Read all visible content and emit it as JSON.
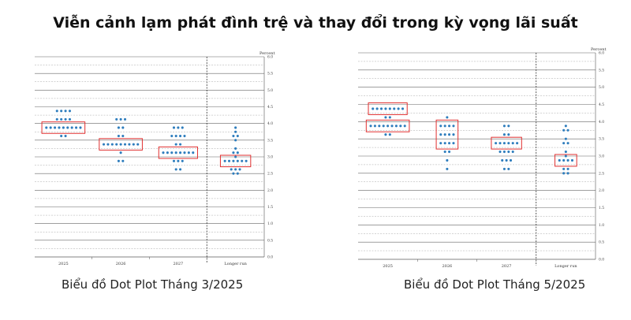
{
  "title": "Viễn cảnh lạm phát đình trệ và thay đổi trong kỳ vọng lãi suất",
  "chart_data": [
    {
      "type": "scatter",
      "caption": "Biểu đồ Dot Plot Tháng 3/2025",
      "unit_label": "Percent",
      "categories": [
        "2025",
        "2026",
        "2027",
        "Longer run"
      ],
      "ylim": [
        0,
        6
      ],
      "yticks": [
        "0.0",
        "0.5",
        "1.0",
        "1.5",
        "2.0",
        "2.5",
        "3.0",
        "3.5",
        "4.0",
        "4.5",
        "5.0",
        "5.5",
        "6.0"
      ],
      "dots": [
        [
          {
            "y": 4.375,
            "n": 4
          },
          {
            "y": 4.125,
            "n": 4
          },
          {
            "y": 3.875,
            "n": 9
          },
          {
            "y": 3.625,
            "n": 2
          }
        ],
        [
          {
            "y": 4.125,
            "n": 3
          },
          {
            "y": 3.875,
            "n": 2
          },
          {
            "y": 3.625,
            "n": 2
          },
          {
            "y": 3.375,
            "n": 9
          },
          {
            "y": 3.125,
            "n": 1
          },
          {
            "y": 2.875,
            "n": 2
          }
        ],
        [
          {
            "y": 3.875,
            "n": 3
          },
          {
            "y": 3.625,
            "n": 4
          },
          {
            "y": 3.375,
            "n": 2
          },
          {
            "y": 3.125,
            "n": 8
          },
          {
            "y": 2.875,
            "n": 3
          },
          {
            "y": 2.625,
            "n": 2
          }
        ],
        [
          {
            "y": 3.875,
            "n": 1
          },
          {
            "y": 3.75,
            "n": 1
          },
          {
            "y": 3.625,
            "n": 2
          },
          {
            "y": 3.5,
            "n": 1
          },
          {
            "y": 3.25,
            "n": 1
          },
          {
            "y": 3.125,
            "n": 2
          },
          {
            "y": 3.0,
            "n": 1
          },
          {
            "y": 2.875,
            "n": 6
          },
          {
            "y": 2.625,
            "n": 3
          },
          {
            "y": 2.5,
            "n": 2
          }
        ]
      ],
      "highlights": [
        {
          "category": "2025",
          "y": 3.875
        },
        {
          "category": "2026",
          "y": 3.375
        },
        {
          "category": "2027",
          "y": 3.125
        },
        {
          "category": "Longer run",
          "y": 2.875
        }
      ],
      "dot_color": "#2e7dbd",
      "highlight_color": "#e03030"
    },
    {
      "type": "scatter",
      "caption": "Biểu đồ Dot Plot Tháng 5/2025",
      "unit_label": "Percent",
      "categories": [
        "2025",
        "2026",
        "2027",
        "Longer run"
      ],
      "ylim": [
        0,
        6
      ],
      "yticks": [
        "0.0",
        "0.5",
        "1.0",
        "1.5",
        "2.0",
        "2.5",
        "3.0",
        "3.5",
        "4.0",
        "4.5",
        "5.0",
        "5.5",
        "6.0"
      ],
      "dots": [
        [
          {
            "y": 4.375,
            "n": 8
          },
          {
            "y": 4.125,
            "n": 2
          },
          {
            "y": 3.875,
            "n": 9
          },
          {
            "y": 3.625,
            "n": 2
          }
        ],
        [
          {
            "y": 4.125,
            "n": 1
          },
          {
            "y": 3.875,
            "n": 4
          },
          {
            "y": 3.625,
            "n": 4
          },
          {
            "y": 3.375,
            "n": 4
          },
          {
            "y": 3.125,
            "n": 2
          },
          {
            "y": 2.875,
            "n": 1
          },
          {
            "y": 2.625,
            "n": 1
          }
        ],
        [
          {
            "y": 3.875,
            "n": 2
          },
          {
            "y": 3.625,
            "n": 2
          },
          {
            "y": 3.375,
            "n": 6
          },
          {
            "y": 3.125,
            "n": 4
          },
          {
            "y": 2.875,
            "n": 3
          },
          {
            "y": 2.625,
            "n": 2
          }
        ],
        [
          {
            "y": 3.875,
            "n": 1
          },
          {
            "y": 3.75,
            "n": 2
          },
          {
            "y": 3.5,
            "n": 1
          },
          {
            "y": 3.375,
            "n": 2
          },
          {
            "y": 3.125,
            "n": 1
          },
          {
            "y": 3.0,
            "n": 1
          },
          {
            "y": 2.875,
            "n": 4
          },
          {
            "y": 2.625,
            "n": 2
          },
          {
            "y": 2.5,
            "n": 2
          }
        ]
      ],
      "highlights": [
        {
          "category": "2025",
          "y": 4.375
        },
        {
          "category": "2025",
          "y": 3.875
        },
        {
          "category": "2026",
          "y": 3.625,
          "span": 0.75
        },
        {
          "category": "2027",
          "y": 3.375
        },
        {
          "category": "Longer run",
          "y": 2.875
        }
      ],
      "dot_color": "#2e7dbd",
      "highlight_color": "#e03030"
    }
  ]
}
